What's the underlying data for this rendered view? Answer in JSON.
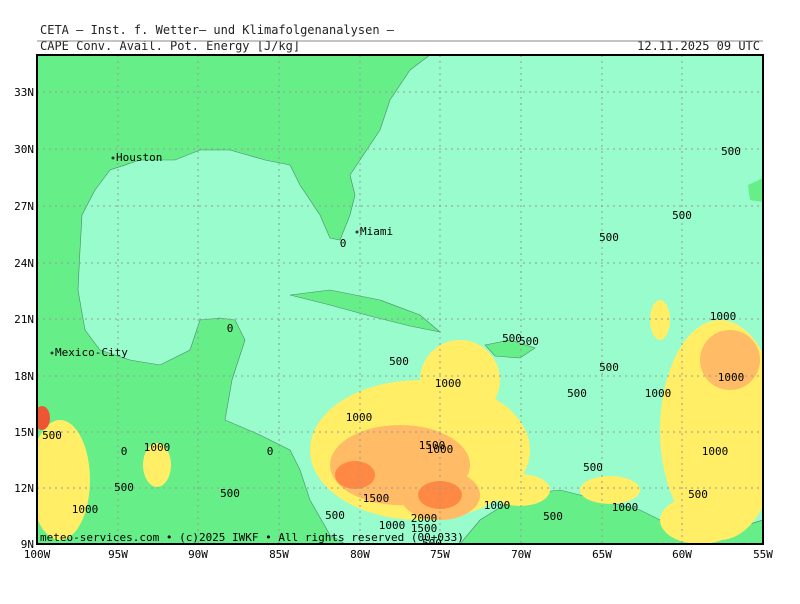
{
  "header": {
    "institute": "CETA – Inst. f. Wetter– und Klimafolgenanalysen –",
    "parameter": "CAPE Conv. Avail. Pot. Energy [J/kg]",
    "valid_time": "12.11.2025 09 UTC"
  },
  "map": {
    "lat_labels": [
      "33N",
      "30N",
      "27N",
      "24N",
      "21N",
      "18N",
      "15N",
      "12N",
      "9N"
    ],
    "lon_labels": [
      "100W",
      "95W",
      "90W",
      "85W",
      "80W",
      "75W",
      "70W",
      "65W",
      "60W",
      "55W"
    ],
    "cities": [
      "Houston",
      "Miami",
      "Mexico-City"
    ],
    "contour_labels": [
      "500",
      "500",
      "500",
      "0",
      "0",
      "1000",
      "500",
      "500",
      "500",
      "500",
      "1000",
      "1000",
      "500",
      "1000",
      "1000",
      "500",
      "1500",
      "1000",
      "1000",
      "0",
      "0",
      "1000",
      "500",
      "500",
      "500",
      "1500",
      "500",
      "1000",
      "1000",
      "1000",
      "500",
      "500",
      "2000",
      "1000",
      "1500",
      "500"
    ]
  },
  "footer": "meteo-services.com • (c)2025 IWKF • All rights reserved (00+033)"
}
